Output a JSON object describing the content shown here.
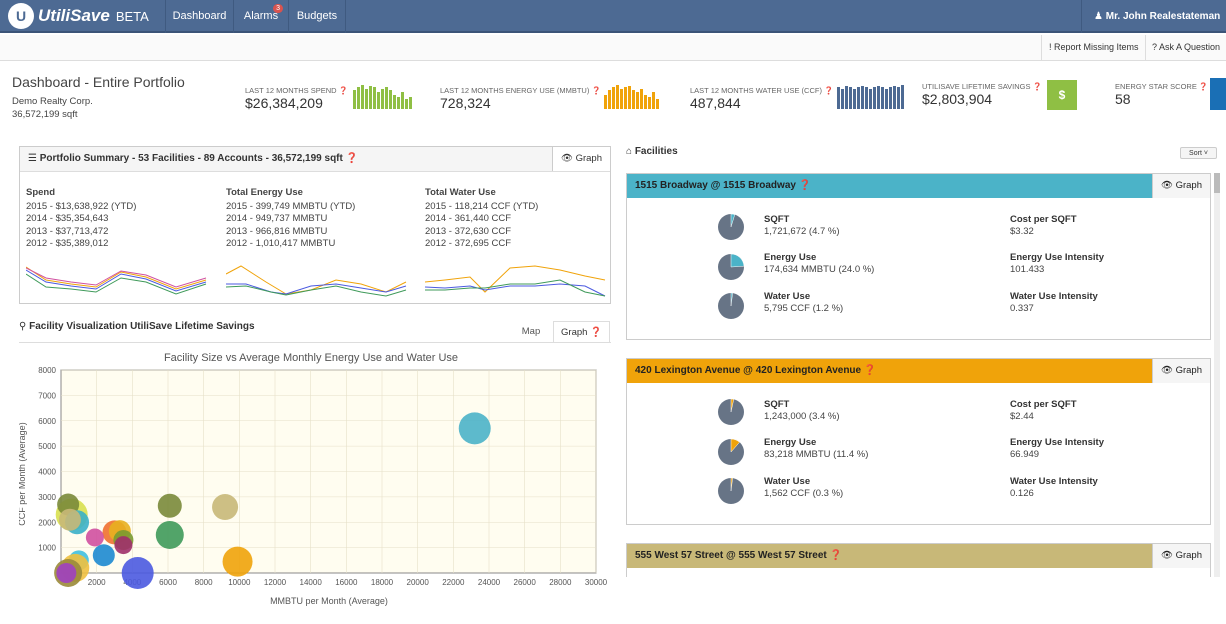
{
  "nav": {
    "brand": "UtiliSave",
    "beta": "BETA",
    "items": [
      "Dashboard",
      "Alarms",
      "Budgets"
    ],
    "alarm_count": "3",
    "user": "Mr. John Realestateman"
  },
  "subbar": {
    "report": "Report Missing Items",
    "ask": "Ask A Question"
  },
  "header": {
    "title": "Dashboard - Entire Portfolio",
    "company": "Demo Realty Corp.",
    "sqft": "36,572,199 sqft"
  },
  "kpis": [
    {
      "label": "LAST 12 MONTHS SPEND",
      "value": "$26,384,209",
      "color": "#8fbf44",
      "bars": [
        0.8,
        0.9,
        1,
        0.85,
        0.95,
        0.9,
        0.7,
        0.85,
        0.9,
        0.8,
        0.6,
        0.5,
        0.7,
        0.4,
        0.5
      ]
    },
    {
      "label": "LAST 12 MONTHS ENERGY USE (MMBTU)",
      "value": "728,324",
      "color": "#f0a30a",
      "bars": [
        0.6,
        0.8,
        0.9,
        1,
        0.85,
        0.9,
        0.95,
        0.8,
        0.7,
        0.85,
        0.6,
        0.5,
        0.7,
        0.4
      ]
    },
    {
      "label": "LAST 12 MONTHS WATER USE (CCF)",
      "value": "487,844",
      "color": "#4d6a93",
      "bars": [
        0.9,
        0.85,
        0.95,
        0.9,
        0.85,
        0.9,
        0.95,
        0.9,
        0.85,
        0.9,
        0.95,
        0.9,
        0.85,
        0.9,
        0.95,
        0.9,
        1
      ]
    },
    {
      "label": "UTILISAVE LIFETIME SAVINGS",
      "value": "$2,803,904",
      "btn": "$"
    },
    {
      "label": "ENERGY STAR SCORE",
      "value": "58"
    }
  ],
  "summary": {
    "title": "Portfolio Summary",
    "facilities": "53 Facilities",
    "accounts": "89 Accounts",
    "sqft": "36,572,199 sqft",
    "graph_label": "Graph",
    "spend": {
      "label": "Spend",
      "rows": [
        "2015 - $13,638,922 (YTD)",
        "2014 - $35,354,643",
        "2013 - $37,713,472",
        "2012 - $35,389,012"
      ]
    },
    "energy": {
      "label": "Total Energy Use",
      "rows": [
        "2015 - 399,749 MMBTU (YTD)",
        "2014 - 949,737 MMBTU",
        "2013 - 966,816 MMBTU",
        "2012 - 1,010,417 MMBTU"
      ]
    },
    "water": {
      "label": "Total Water Use",
      "rows": [
        "2015 - 118,214 CCF (YTD)",
        "2014 - 361,440 CCF",
        "2013 - 372,630 CCF",
        "2012 - 372,695 CCF"
      ]
    }
  },
  "viz": {
    "title": "Facility Visualization UtiliSave Lifetime Savings",
    "tab_map": "Map",
    "tab_graph": "Graph"
  },
  "chart_data": {
    "type": "scatter",
    "title": "Facility Size vs Average Monthly Energy Use and Water Use",
    "xlabel": "MMBTU per Month (Average)",
    "ylabel": "CCF per Month (Average)",
    "xlim": [
      0,
      30000
    ],
    "ylim": [
      0,
      8000
    ],
    "xticks": [
      2000,
      4000,
      6000,
      8000,
      10000,
      12000,
      14000,
      16000,
      18000,
      20000,
      22000,
      24000,
      26000,
      28000,
      30000
    ],
    "xtick_labels": [
      "2000",
      "4000",
      "6000",
      "8000",
      "10000",
      "12000",
      "14000",
      "16000",
      "18000",
      "20000",
      "22000",
      "24000",
      "26000",
      "28000",
      "30000"
    ],
    "yticks": [
      1000,
      2000,
      3000,
      4000,
      5000,
      6000,
      7000,
      8000
    ],
    "ytick_labels": [
      "1000",
      "2000",
      "3000",
      "4000",
      "5000",
      "6000",
      "7000",
      "8000"
    ],
    "points": [
      {
        "x": 23200,
        "y": 5700,
        "r": 16,
        "color": "#4bb3c8"
      },
      {
        "x": 9200,
        "y": 2600,
        "r": 13,
        "color": "#c8b878"
      },
      {
        "x": 6100,
        "y": 2650,
        "r": 12,
        "color": "#7a8a3a"
      },
      {
        "x": 6100,
        "y": 1500,
        "r": 14,
        "color": "#3f9a5a"
      },
      {
        "x": 9900,
        "y": 450,
        "r": 15,
        "color": "#f0a30a"
      },
      {
        "x": 4300,
        "y": 0,
        "r": 16,
        "color": "#4b5ae0"
      },
      {
        "x": 3000,
        "y": 1600,
        "r": 12,
        "color": "#f07030"
      },
      {
        "x": 3300,
        "y": 1650,
        "r": 11,
        "color": "#e8b020"
      },
      {
        "x": 3500,
        "y": 1300,
        "r": 10,
        "color": "#7a9a30"
      },
      {
        "x": 3500,
        "y": 1100,
        "r": 9,
        "color": "#a0306a"
      },
      {
        "x": 1900,
        "y": 1400,
        "r": 9,
        "color": "#d050a0"
      },
      {
        "x": 2400,
        "y": 700,
        "r": 11,
        "color": "#1d8ad0"
      },
      {
        "x": 1000,
        "y": 500,
        "r": 10,
        "color": "#40c0e0"
      },
      {
        "x": 600,
        "y": 2300,
        "r": 16,
        "color": "#d8e050"
      },
      {
        "x": 400,
        "y": 2700,
        "r": 11,
        "color": "#7a8a3a"
      },
      {
        "x": 900,
        "y": 2000,
        "r": 12,
        "color": "#3ab0c8"
      },
      {
        "x": 500,
        "y": 2100,
        "r": 11,
        "color": "#c8b878"
      },
      {
        "x": 800,
        "y": 200,
        "r": 14,
        "color": "#f0c040"
      },
      {
        "x": 400,
        "y": 0,
        "r": 14,
        "color": "#9a8a3a"
      },
      {
        "x": 300,
        "y": 0,
        "r": 10,
        "color": "#a040c0"
      }
    ]
  },
  "facilities": {
    "title": "Facilities",
    "sort": "Sort",
    "items": [
      {
        "name": "1515 Broadway @ 1515 Broadway",
        "color": "#4bb3c8",
        "graph": "Graph",
        "sqft_label": "SQFT",
        "sqft": "1,721,672 (4.7 %)",
        "sqft_frac": 0.047,
        "energy_label": "Energy Use",
        "energy": "174,634 MMBTU (24.0 %)",
        "energy_frac": 0.24,
        "water_label": "Water Use",
        "water": "5,795 CCF (1.2 %)",
        "water_frac": 0.012,
        "cost_label": "Cost per SQFT",
        "cost": "$3.32",
        "eui_label": "Energy Use Intensity",
        "eui": "101.433",
        "wui_label": "Water Use Intensity",
        "wui": "0.337"
      },
      {
        "name": "420 Lexington Avenue @ 420 Lexington Avenue",
        "color": "#f0a30a",
        "graph": "Graph",
        "sqft_label": "SQFT",
        "sqft": "1,243,000 (3.4 %)",
        "sqft_frac": 0.034,
        "energy_label": "Energy Use",
        "energy": "83,218 MMBTU (11.4 %)",
        "energy_frac": 0.114,
        "water_label": "Water Use",
        "water": "1,562 CCF (0.3 %)",
        "water_frac": 0.003,
        "cost_label": "Cost per SQFT",
        "cost": "$2.44",
        "eui_label": "Energy Use Intensity",
        "eui": "66.949",
        "wui_label": "Water Use Intensity",
        "wui": "0.126"
      },
      {
        "name": "555 West 57 Street @ 555 West 57 Street",
        "color": "#c8b878",
        "graph": "Graph"
      }
    ]
  }
}
